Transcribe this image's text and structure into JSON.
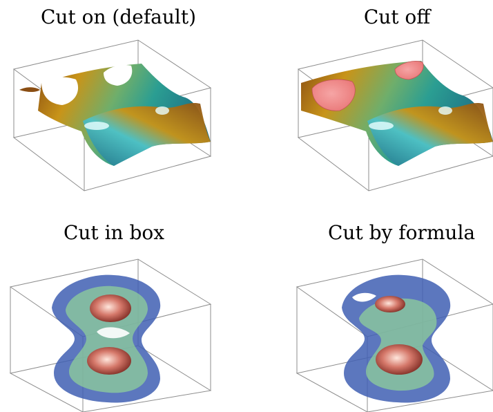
{
  "panels": [
    {
      "title": "Cut on (default)",
      "plot": "surface",
      "cut": "on"
    },
    {
      "title": "Cut off",
      "plot": "surface",
      "cut": "off"
    },
    {
      "title": "Cut in box",
      "plot": "surf3",
      "cut": "box"
    },
    {
      "title": "Cut by formula",
      "plot": "surf3",
      "cut": "formula"
    }
  ],
  "colors": {
    "box_line": "#8c8c8c",
    "surface_gold": "#c89419",
    "surface_teal": "#2b9e92",
    "surface_brown": "#8a4e13",
    "clipped_pink": "#f28c8c",
    "iso_blue": "#3f5fb3",
    "iso_green": "#8fcf9a",
    "iso_core": "#b5473b"
  }
}
